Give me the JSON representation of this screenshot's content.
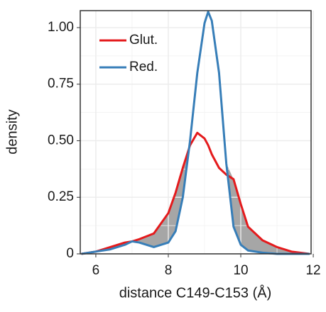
{
  "chart_data": {
    "type": "line",
    "x_label": "distance C149-C153 (Å)",
    "y_label": "density",
    "x": [
      5.6,
      6.0,
      6.4,
      6.8,
      7.0,
      7.2,
      7.6,
      8.0,
      8.2,
      8.4,
      8.6,
      8.8,
      9.0,
      9.1,
      9.2,
      9.4,
      9.6,
      9.8,
      10.0,
      10.2,
      10.6,
      11.0,
      11.4,
      11.9
    ],
    "series": [
      {
        "name": "Glut.",
        "color": "#e41a1c",
        "values": [
          0,
          0.01,
          0.03,
          0.05,
          0.055,
          0.065,
          0.09,
          0.18,
          0.27,
          0.38,
          0.48,
          0.535,
          0.51,
          0.48,
          0.44,
          0.38,
          0.35,
          0.33,
          0.22,
          0.12,
          0.06,
          0.03,
          0.01,
          0
        ]
      },
      {
        "name": "Red.",
        "color": "#377eb8",
        "values": [
          0,
          0.01,
          0.02,
          0.04,
          0.055,
          0.05,
          0.03,
          0.05,
          0.1,
          0.25,
          0.5,
          0.8,
          1.02,
          1.07,
          1.03,
          0.8,
          0.4,
          0.12,
          0.04,
          0.015,
          0.005,
          0,
          0,
          0
        ]
      }
    ],
    "fill_color": "#a6a6a6",
    "xlim": [
      5.57,
      11.94
    ],
    "xticks": [
      6,
      8,
      10,
      12
    ],
    "ylim": [
      0,
      1.075
    ],
    "yticks": [
      0,
      0.25,
      {
        "value": 0.5,
        "label": "0.50"
      },
      0.75,
      {
        "value": 1,
        "label": "1.00"
      }
    ],
    "grid": true,
    "legend": "top-left"
  }
}
